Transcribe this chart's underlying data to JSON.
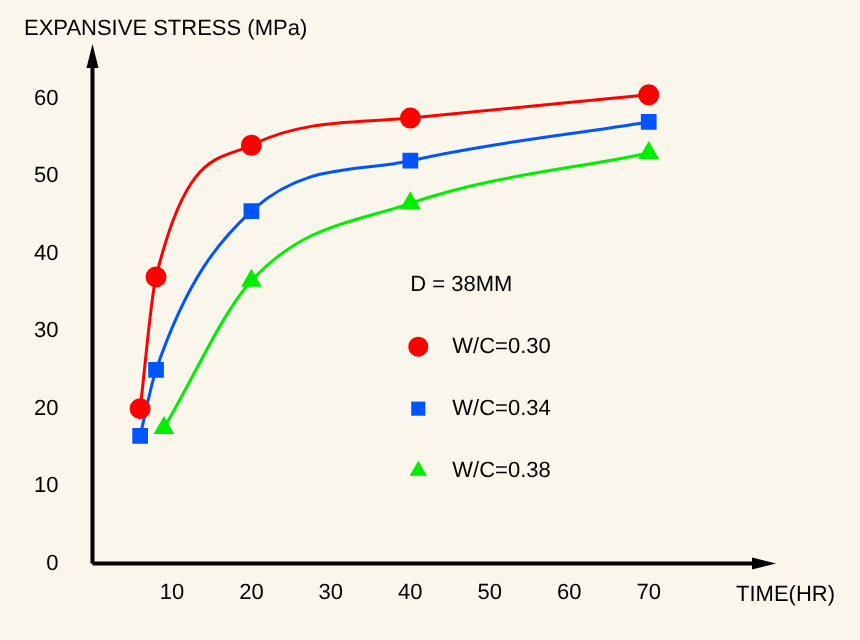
{
  "chart_data": {
    "type": "line",
    "xlabel": "TIME(HR)",
    "ylabel": "EXPANSIVE STRESS (MPa)",
    "annotations": [
      "D = 38MM"
    ],
    "series": [
      {
        "name": "W/C=0.30",
        "color": "#ff0000",
        "marker": "circle",
        "x": [
          6,
          8,
          20,
          40,
          70
        ],
        "values": [
          20,
          37,
          54,
          57.5,
          60.5
        ]
      },
      {
        "name": "W/C=0.34",
        "color": "#0055ff",
        "marker": "square",
        "x": [
          6,
          8,
          20,
          40,
          70
        ],
        "values": [
          16.5,
          25,
          45.5,
          52,
          57
        ]
      },
      {
        "name": "W/C=0.38",
        "color": "#00ee00",
        "marker": "triangle",
        "x": [
          9,
          20,
          40,
          70
        ],
        "values": [
          17.5,
          36.5,
          46.5,
          53
        ]
      }
    ],
    "xlim": [
      0,
      84
    ],
    "xticks": [
      10,
      20,
      30,
      40,
      50,
      60,
      70
    ],
    "ylim": [
      0,
      65
    ],
    "yticks": [
      0,
      10,
      20,
      30,
      40,
      50,
      60
    ],
    "grid": false,
    "legend": "right"
  }
}
